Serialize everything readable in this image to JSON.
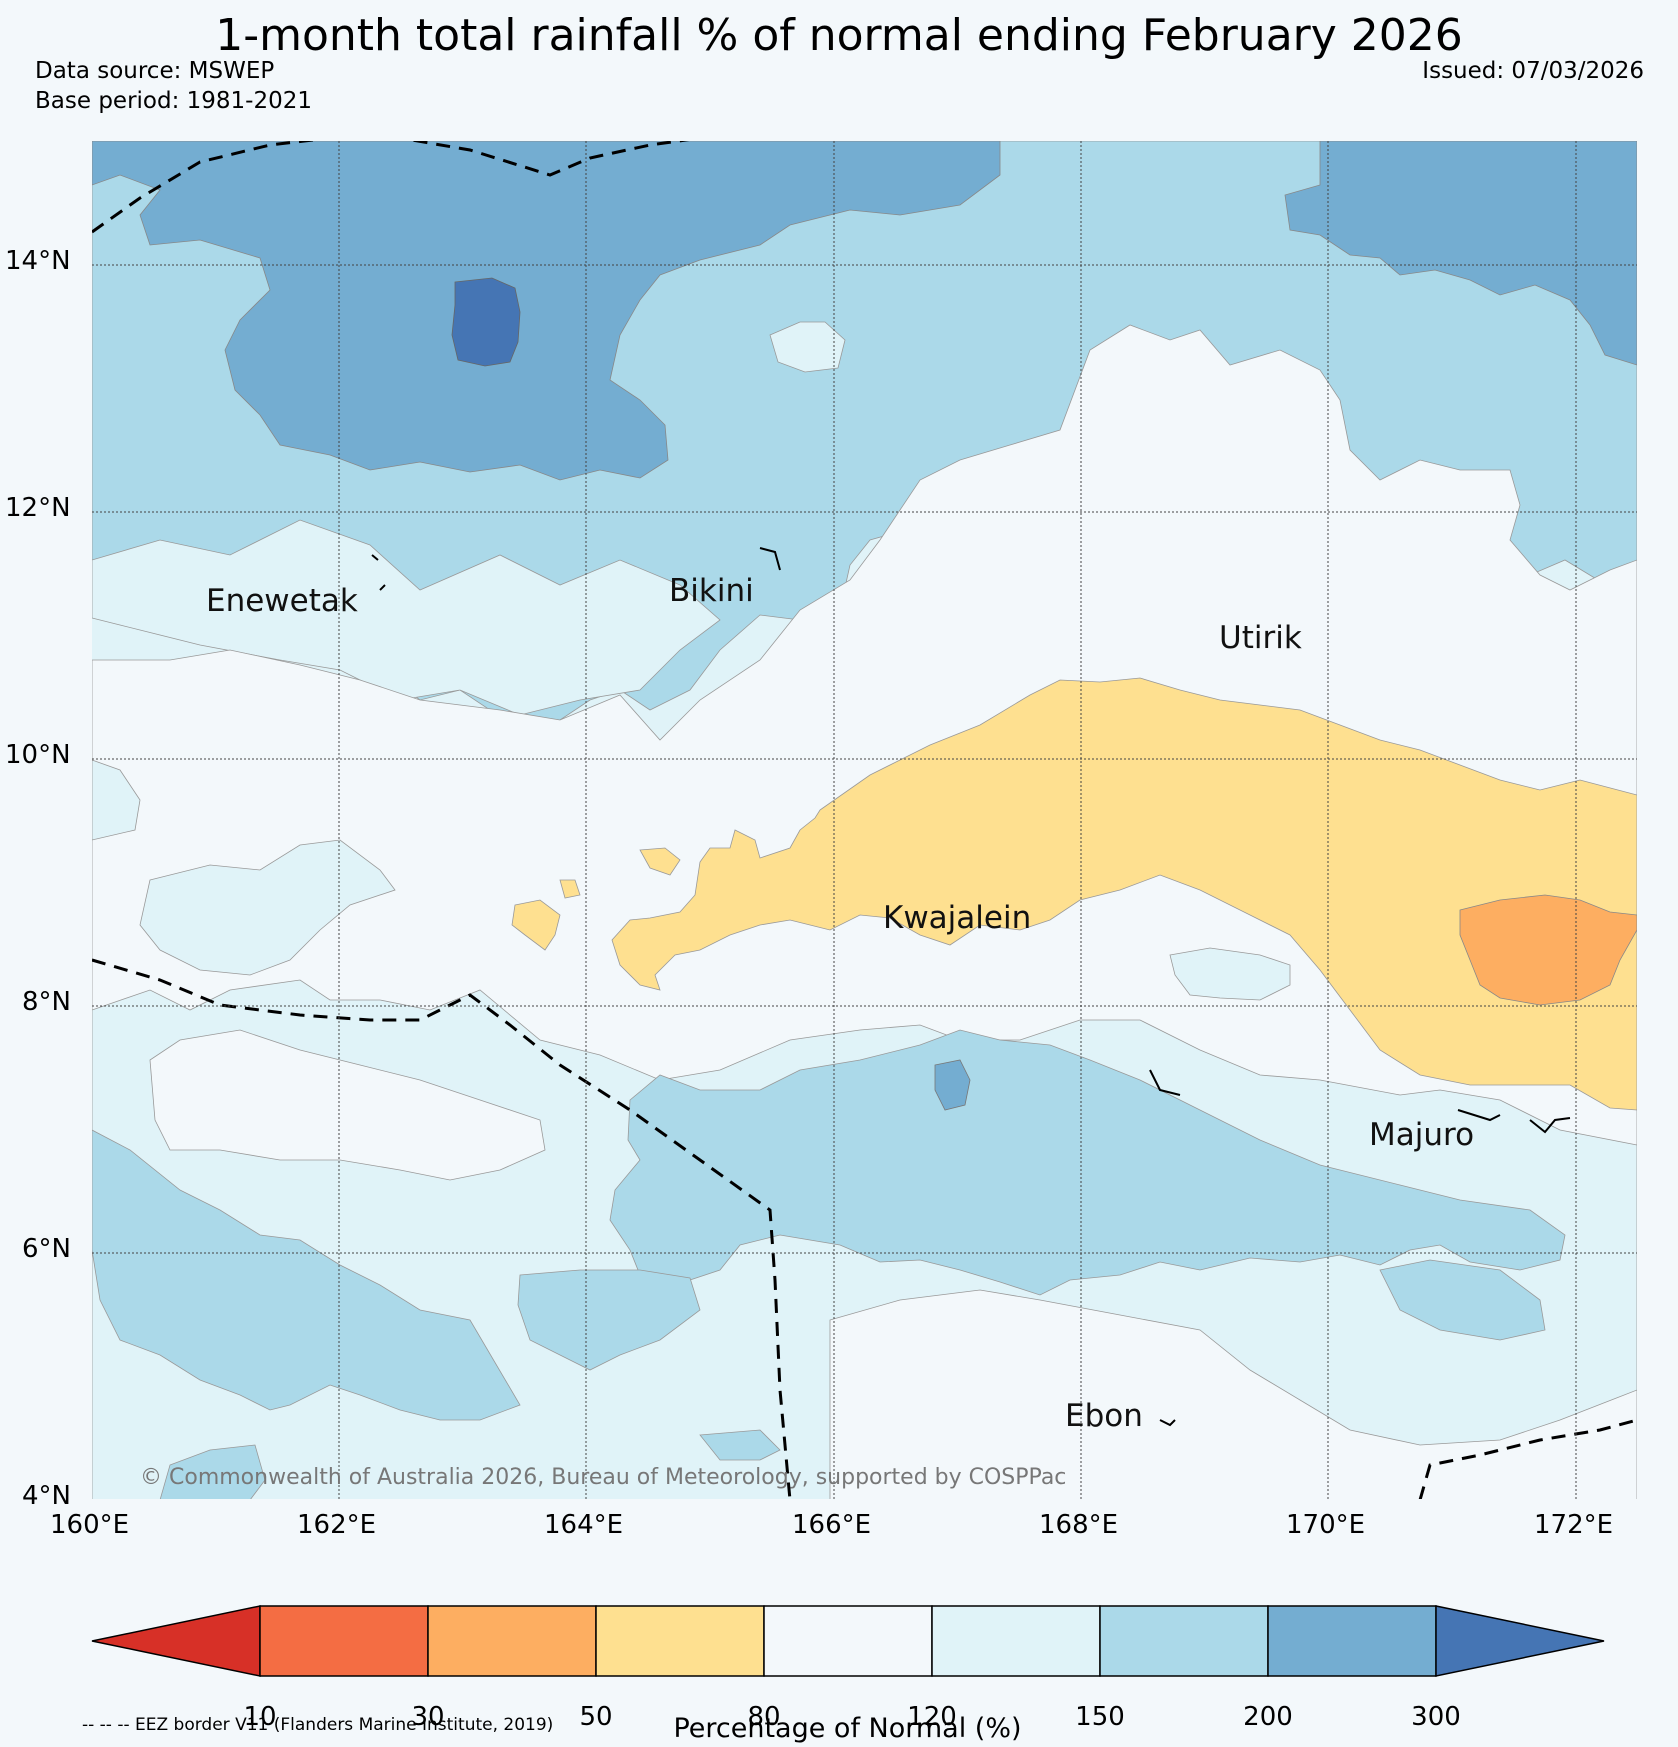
{
  "header": {
    "title": "1-month total rainfall % of normal ending February 2026",
    "data_source": "Data source: MSWEP",
    "base_period": "Base period: 1981-2021",
    "issued": "Issued: 07/03/2026"
  },
  "map": {
    "lat_ticks": [
      "14°N",
      "12°N",
      "10°N",
      "8°N",
      "6°N",
      "4°N"
    ],
    "lon_ticks": [
      "160°E",
      "162°E",
      "164°E",
      "166°E",
      "168°E",
      "170°E",
      "172°E"
    ],
    "places": {
      "enewetak": "Enewetak",
      "bikini": "Bikini",
      "utirik": "Utirik",
      "kwajalein": "Kwajalein",
      "majuro": "Majuro",
      "ebon": "Ebon"
    },
    "copyright": "© Commonwealth of Australia 2026, Bureau of Meteorology, supported by COSPPac"
  },
  "colorbar": {
    "title": "Percentage of Normal (%)",
    "labels": [
      "10",
      "30",
      "50",
      "80",
      "120",
      "150",
      "200",
      "300"
    ],
    "colors": [
      "#d73027",
      "#f46d43",
      "#fdae61",
      "#fee090",
      "#f3f8fb",
      "#e0f3f8",
      "#abd9e9",
      "#74add1",
      "#4575b4"
    ]
  },
  "legend_note": "-- -- -- EEZ border V11 (Flanders Marine Institute, 2019)"
}
